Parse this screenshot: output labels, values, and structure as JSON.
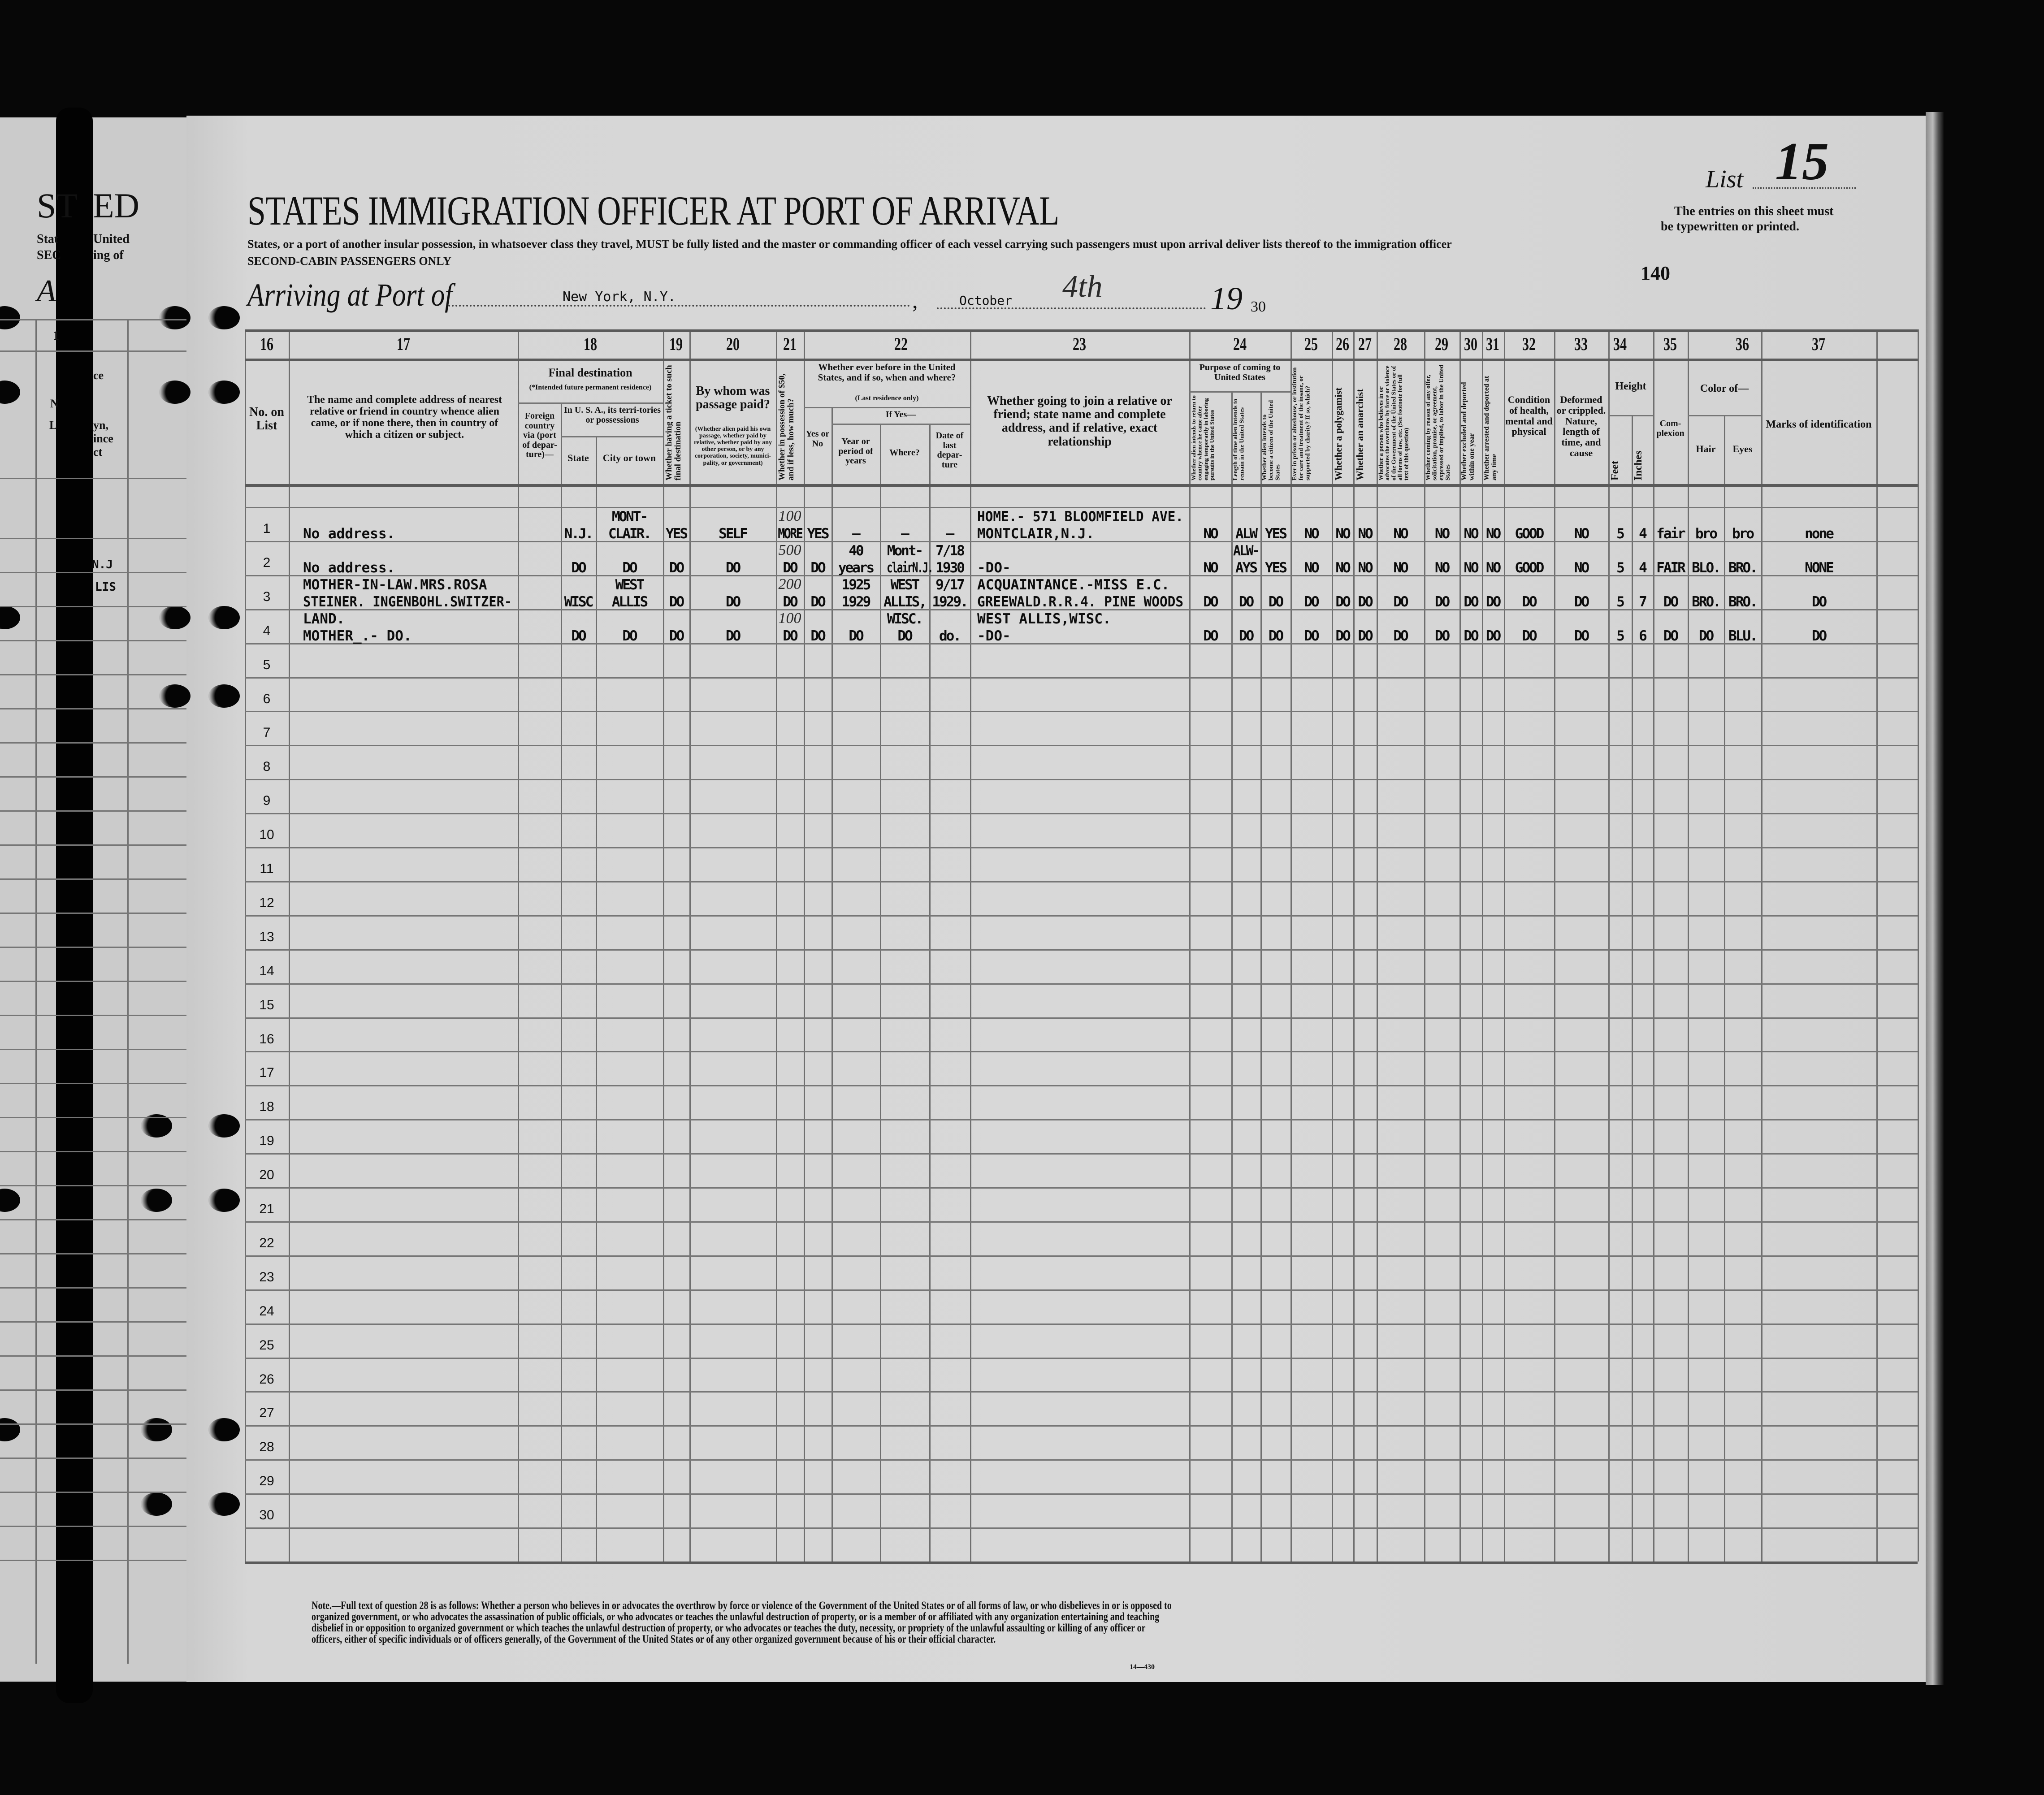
{
  "colors": {
    "paper": "#d6d6d6",
    "ink": "#111111",
    "rule": "#6f6f6f",
    "background": "#070707"
  },
  "header": {
    "title": "STATES IMMIGRATION OFFICER AT PORT OF ARRIVAL",
    "instructions": "States, or a port of another insular possession, in whatsoever class they travel, MUST be fully listed and the master or commanding officer of each vessel carrying such passengers must upon arrival deliver lists thereof to the immigration officer",
    "cabin_class": "SECOND-CABIN PASSENGERS ONLY",
    "arriving_label": "Arriving at Port of",
    "port": "New York, N.Y.",
    "month": "October",
    "day": "4th",
    "year_prefix": "19",
    "year_suffix": "30",
    "list_label": "List",
    "list_number": "15",
    "typewritten_notice_1": "The entries on this sheet must",
    "typewritten_notice_2": "be typewritten or printed.",
    "sheet_number": "140"
  },
  "left_page_fragment": {
    "title_a": "ST",
    "title_b": "ED",
    "line1_a": "Stat",
    "line1_b": "United",
    "line2_a": "SEC",
    "line2_b": "ing of",
    "arriving_a": "A",
    "col_num": "1",
    "hdr1": "ce",
    "hdr2": "N",
    "hdr3": "L",
    "hdr4": "yn,",
    "hdr5": "ince",
    "hdr6": "ct",
    "entry_2": "N.J",
    "entry_3": "LIS"
  },
  "columns": {
    "c16": {
      "number": "16",
      "label": "No. on List"
    },
    "c17": {
      "number": "17",
      "label": "The name and complete address of nearest relative or friend in country whence alien came, or if none there, then in country of which a citizen or subject."
    },
    "c18": {
      "number": "18",
      "label": "Final destination",
      "note": "(*Intended future permanent residence)",
      "foreign": "Foreign country via (port of depar-ture)—",
      "usa": "In U. S. A., its terri-tories or possessions",
      "state": "State",
      "city": "City or town"
    },
    "c19": {
      "number": "19",
      "label": "Whether having a ticket to such final destination"
    },
    "c20": {
      "number": "20",
      "label": "By whom was passage paid?",
      "note": "(Whether alien paid his own passage, whether paid by relative, whether paid by any other person, or by any corporation, society, munici-pality, or government)"
    },
    "c21": {
      "number": "21",
      "label": "Whether in possession of $50, and if less, how much?"
    },
    "c22": {
      "number": "22",
      "label": "Whether ever before in the United States, and if so, when and where?",
      "note": "(Last residence only)",
      "if_yes": "If Yes—",
      "yes_no": "Yes or No",
      "year": "Year or period of years",
      "where": "Where?",
      "date": "Date of last depar-ture"
    },
    "c23": {
      "number": "23",
      "label": "Whether going to join a relative or friend; state name and complete address, and if relative, exact relationship"
    },
    "c24": {
      "number": "24",
      "label": "Purpose of coming to United States",
      "a": "Whether alien intends to return to country whence he came after engaging temporarily in laboring pursuits in the United States",
      "b": "Length of time alien intends to remain in the United States",
      "c": "Whether alien intends to become a citizen of the United States"
    },
    "c25": {
      "number": "25",
      "label": "Ever in prison or almshouse, or institution for care and treatment of the insane, or supported by charity? If so, which?"
    },
    "c26": {
      "number": "26",
      "label": "Whether a polygamist"
    },
    "c27": {
      "number": "27",
      "label": "Whether an anarchist"
    },
    "c28": {
      "number": "28",
      "label": "Whether a person who believes in or advocates the overthrow by force or violence of the Government of the United States or of all forms of law, etc. (See footnote for full text of this question)"
    },
    "c29": {
      "number": "29",
      "label": "Whether coming by reason of any offer, solicitation, promise, or agreement, expressed or implied, to labor in the United States"
    },
    "c30": {
      "number": "30",
      "label": "Whether excluded and deported within one year"
    },
    "c31": {
      "number": "31",
      "label": "Whether arrested and deported at any time"
    },
    "c32": {
      "number": "32",
      "label": "Condition of health, mental and physical"
    },
    "c33": {
      "number": "33",
      "label": "Deformed or crippled. Nature, length of time, and cause"
    },
    "c34": {
      "number": "34",
      "label": "Height",
      "feet": "Feet",
      "inches": "Inches"
    },
    "c35": {
      "number": "35",
      "label": "Com-plexion"
    },
    "c36": {
      "number": "36",
      "label": "Color of—",
      "hair": "Hair",
      "eyes": "Eyes"
    },
    "c37": {
      "number": "37",
      "label": "Marks of identification"
    }
  },
  "line_numbers": [
    "1",
    "2",
    "3",
    "4",
    "5",
    "6",
    "7",
    "8",
    "9",
    "10",
    "11",
    "12",
    "13",
    "14",
    "15",
    "16",
    "17",
    "18",
    "19",
    "20",
    "21",
    "22",
    "23",
    "24",
    "25",
    "26",
    "27",
    "28",
    "29",
    "30"
  ],
  "entries": [
    {
      "relative": [
        "No address."
      ],
      "state": [
        "N.J."
      ],
      "city": [
        "MONT-",
        "CLAIR."
      ],
      "ticket": [
        "YES"
      ],
      "paid_by": [
        "SELF"
      ],
      "money": [
        "MORE"
      ],
      "ever_before": [
        "YES"
      ],
      "year": [
        "—"
      ],
      "where": [
        "—"
      ],
      "date": [
        "—"
      ],
      "join": [
        "HOME.- 571 BLOOMFIELD AVE.",
        "MONTCLAIR,N.J."
      ],
      "c24a": [
        "NO"
      ],
      "c24b": [
        "ALW"
      ],
      "c24c": [
        "YES"
      ],
      "c25": [
        "NO"
      ],
      "c26": [
        "NO"
      ],
      "c27": [
        "NO"
      ],
      "c28": [
        "NO"
      ],
      "c29": [
        "NO"
      ],
      "c30": [
        "NO"
      ],
      "c31": [
        "NO"
      ],
      "c32": [
        "GOOD"
      ],
      "c33": [
        "NO"
      ],
      "feet": [
        "5"
      ],
      "inches": [
        "4"
      ],
      "complexion": [
        "fair"
      ],
      "hair": [
        "bro"
      ],
      "eyes": [
        "bro"
      ],
      "marks": [
        "none"
      ]
    },
    {
      "relative": [
        "No address."
      ],
      "state": [
        "DO"
      ],
      "city": [
        "DO"
      ],
      "ticket": [
        "DO"
      ],
      "paid_by": [
        "DO"
      ],
      "money": [
        "DO"
      ],
      "ever_before": [
        "DO"
      ],
      "year": [
        "40",
        "years"
      ],
      "where": [
        "Mont-",
        "clairN.J."
      ],
      "date": [
        "7/18",
        "1930"
      ],
      "join": [
        "-DO-"
      ],
      "c24a": [
        "NO"
      ],
      "c24b": [
        "ALW-",
        "AYS"
      ],
      "c24c": [
        "YES"
      ],
      "c25": [
        "NO"
      ],
      "c26": [
        "NO"
      ],
      "c27": [
        "NO"
      ],
      "c28": [
        "NO"
      ],
      "c29": [
        "NO"
      ],
      "c30": [
        "NO"
      ],
      "c31": [
        "NO"
      ],
      "c32": [
        "GOOD"
      ],
      "c33": [
        "NO"
      ],
      "feet": [
        "5"
      ],
      "inches": [
        "4"
      ],
      "complexion": [
        "FAIR"
      ],
      "hair": [
        "BLO."
      ],
      "eyes": [
        "BRO."
      ],
      "marks": [
        "NONE"
      ]
    },
    {
      "relative": [
        "MOTHER-IN-LAW.MRS.ROSA",
        "STEINER. INGENBOHL.SWITZER-",
        "LAND."
      ],
      "state": [
        "WISC"
      ],
      "city": [
        "WEST",
        "ALLIS"
      ],
      "ticket": [
        "DO"
      ],
      "paid_by": [
        "DO"
      ],
      "money": [
        "DO"
      ],
      "ever_before": [
        "DO"
      ],
      "year": [
        "1925",
        "1929"
      ],
      "where": [
        "WEST",
        "ALLIS,",
        "WISC."
      ],
      "date": [
        "9/17",
        "1929."
      ],
      "join": [
        "ACQUAINTANCE.-MISS E.C.",
        "GREEWALD.R.R.4. PINE WOODS",
        "WEST ALLIS,WISC."
      ],
      "c24a": [
        "DO"
      ],
      "c24b": [
        "DO"
      ],
      "c24c": [
        "DO"
      ],
      "c25": [
        "DO"
      ],
      "c26": [
        "DO"
      ],
      "c27": [
        "DO"
      ],
      "c28": [
        "DO"
      ],
      "c29": [
        "DO"
      ],
      "c30": [
        "DO"
      ],
      "c31": [
        "DO"
      ],
      "c32": [
        "DO"
      ],
      "c33": [
        "DO"
      ],
      "feet": [
        "5"
      ],
      "inches": [
        "7"
      ],
      "complexion": [
        "DO"
      ],
      "hair": [
        "BRO."
      ],
      "eyes": [
        "BRO."
      ],
      "marks": [
        "DO"
      ]
    },
    {
      "relative": [
        "MOTHER_.-      DO."
      ],
      "state": [
        "DO"
      ],
      "city": [
        "DO"
      ],
      "ticket": [
        "DO"
      ],
      "paid_by": [
        "DO"
      ],
      "money": [
        "DO"
      ],
      "ever_before": [
        "DO"
      ],
      "year": [
        "DO"
      ],
      "where": [
        "DO"
      ],
      "date": [
        "do."
      ],
      "join": [
        "-DO-"
      ],
      "c24a": [
        "DO"
      ],
      "c24b": [
        "DO"
      ],
      "c24c": [
        "DO"
      ],
      "c25": [
        "DO"
      ],
      "c26": [
        "DO"
      ],
      "c27": [
        "DO"
      ],
      "c28": [
        "DO"
      ],
      "c29": [
        "DO"
      ],
      "c30": [
        "DO"
      ],
      "c31": [
        "DO"
      ],
      "c32": [
        "DO"
      ],
      "c33": [
        "DO"
      ],
      "feet": [
        "5"
      ],
      "inches": [
        "6"
      ],
      "complexion": [
        "DO"
      ],
      "hair": [
        "DO"
      ],
      "eyes": [
        "BLU."
      ],
      "marks": [
        "DO"
      ]
    }
  ],
  "handwritten_amounts": [
    "100",
    "500",
    "200",
    "100"
  ],
  "footnote": {
    "text": "Note.—Full text of question 28 is as follows: Whether a person who believes in or advocates the overthrow by force or violence of the Government of the United States or of all forms of law, or who disbelieves in or is opposed to organized government, or who advocates the assassination of public officials, or who advocates or teaches the unlawful destruction of property, or is a member of or affiliated with any organization entertaining and teaching disbelief in or opposition to organized government or which teaches the unlawful destruction of property, or who advocates or teaches the duty, necessity, or propriety of the unlawful assaulting or killing of any officer or officers, either of specific individuals or of officers generally, of the Government of the United States or of any other organized government because of his or their official character.",
    "form_number": "14—430"
  }
}
